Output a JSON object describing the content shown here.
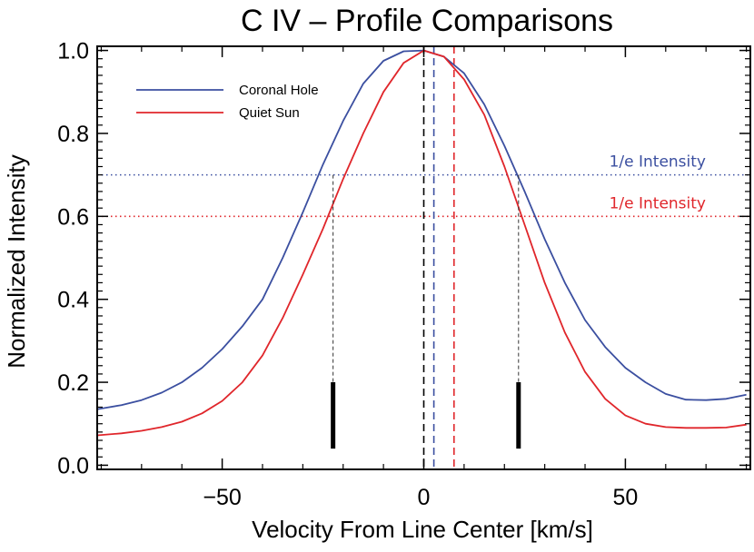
{
  "chart_data": {
    "type": "line",
    "title": "C IV – Profile Comparisons",
    "xlabel": "Velocity From Line Center [km/s]",
    "ylabel": "Normalized Intensity",
    "xlim": [
      -81,
      81
    ],
    "ylim": [
      -0.01,
      1.01
    ],
    "xticks": [
      -50,
      0,
      50
    ],
    "xtick_labels": [
      "−50",
      "0",
      "50"
    ],
    "yticks": [
      0.0,
      0.2,
      0.4,
      0.6,
      0.8,
      1.0
    ],
    "ytick_labels": [
      "0.0",
      "0.2",
      "0.4",
      "0.6",
      "0.8",
      "1.0"
    ],
    "grid": false,
    "legend_position": "top-left",
    "series": [
      {
        "name": "Coronal Hole",
        "color": "#3b4fa0",
        "x": [
          -81,
          -75,
          -70,
          -65,
          -60,
          -55,
          -50,
          -45,
          -40,
          -35,
          -30,
          -25,
          -20,
          -15,
          -10,
          -5,
          0,
          5,
          10,
          15,
          20,
          25,
          30,
          35,
          40,
          45,
          50,
          55,
          60,
          65,
          70,
          75,
          80
        ],
        "y": [
          0.135,
          0.145,
          0.157,
          0.175,
          0.2,
          0.235,
          0.28,
          0.335,
          0.4,
          0.5,
          0.61,
          0.725,
          0.83,
          0.92,
          0.975,
          0.998,
          1.0,
          0.985,
          0.945,
          0.87,
          0.77,
          0.66,
          0.545,
          0.44,
          0.35,
          0.285,
          0.235,
          0.2,
          0.172,
          0.158,
          0.157,
          0.16,
          0.17
        ]
      },
      {
        "name": "Quiet Sun",
        "color": "#e0262b",
        "x": [
          -81,
          -75,
          -70,
          -65,
          -60,
          -55,
          -50,
          -45,
          -40,
          -35,
          -30,
          -25,
          -20,
          -15,
          -10,
          -5,
          0,
          5,
          10,
          15,
          20,
          25,
          30,
          35,
          40,
          45,
          50,
          55,
          60,
          65,
          70,
          75,
          80
        ],
        "y": [
          0.072,
          0.077,
          0.083,
          0.092,
          0.105,
          0.125,
          0.155,
          0.2,
          0.265,
          0.355,
          0.46,
          0.57,
          0.69,
          0.8,
          0.9,
          0.97,
          1.0,
          0.985,
          0.93,
          0.845,
          0.72,
          0.58,
          0.44,
          0.32,
          0.225,
          0.16,
          0.12,
          0.1,
          0.092,
          0.09,
          0.09,
          0.091,
          0.098
        ]
      }
    ],
    "hlines": [
      {
        "y": 0.7,
        "color": "#3b4fa0",
        "label": "1/e Intensity"
      },
      {
        "y": 0.6,
        "color": "#e0262b",
        "label": "1/e Intensity"
      }
    ],
    "vlines": [
      {
        "x": 0,
        "color": "#000000"
      },
      {
        "x": 2.5,
        "color": "#3b4fa0"
      },
      {
        "x": 7.5,
        "color": "#e0262b"
      }
    ],
    "marker_bars": [
      {
        "x": -22.5,
        "y0": 0.04,
        "y1": 0.2,
        "top": 0.7
      },
      {
        "x": 23.5,
        "y0": 0.04,
        "y1": 0.2,
        "top": 0.7
      }
    ]
  }
}
